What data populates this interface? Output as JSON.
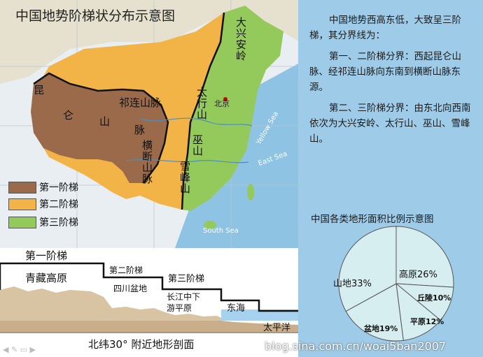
{
  "map": {
    "title": "中国地势阶梯状分布示意图",
    "labels": {
      "kunlun_1": "昆",
      "kunlun_2": "仑",
      "kunlun_3": "山",
      "kunlun_4": "脉",
      "qilian": "祁连山脉",
      "hengduan": "横断山脉",
      "taihang": "太行山",
      "daxinganling": "大兴安岭",
      "wushan": "巫山",
      "xuefengshan": "雪峰山",
      "beijing": "北京",
      "yellow_sea": "Yellow Sea",
      "east_sea": "East Sea",
      "south_sea": "South Sea"
    },
    "colors": {
      "step1": "#9b6a4b",
      "step2": "#f2b347",
      "step3": "#94c95b",
      "sea": "#8fc3e3"
    }
  },
  "legend": {
    "items": [
      {
        "label": "第一阶梯",
        "color": "#9b6a4b"
      },
      {
        "label": "第二阶梯",
        "color": "#f2b347"
      },
      {
        "label": "第三阶梯",
        "color": "#94c95b"
      }
    ]
  },
  "profile": {
    "step1": "第一阶梯",
    "step2": "第二阶梯",
    "step3": "第三阶梯",
    "qingzang": "青藏高原",
    "sichuan": "四川盆地",
    "changjiang_1": "长江中下",
    "changjiang_2": "游平原",
    "donghai": "东海",
    "taipingyang": "太平洋",
    "caption": "北纬30° 附近地形剖面"
  },
  "description": {
    "intro": "中国地势西高东低，大致呈三阶梯，其分界线为：",
    "line1": "第一、二阶梯分界：西起昆仑山脉、经祁连山脉向东南到横断山脉东源。",
    "line2": "第二、三阶梯分界：由东北向西南依次为大兴安岭、太行山、巫山、雪峰山。"
  },
  "pie": {
    "title": "中国各类地形面积比例示意图",
    "slices": [
      {
        "name": "山地",
        "value": 33,
        "label": "山地33%"
      },
      {
        "name": "高原",
        "value": 26,
        "label": "高原26%"
      },
      {
        "name": "丘陵",
        "value": 10,
        "label": "丘陵10%"
      },
      {
        "name": "平原",
        "value": 12,
        "label": "平原12%"
      },
      {
        "name": "盆地",
        "value": 19,
        "label": "盆地19%"
      }
    ],
    "fill": "#d6eef0"
  },
  "watermark": "blog.sina.com.cn/woai5ban2007"
}
